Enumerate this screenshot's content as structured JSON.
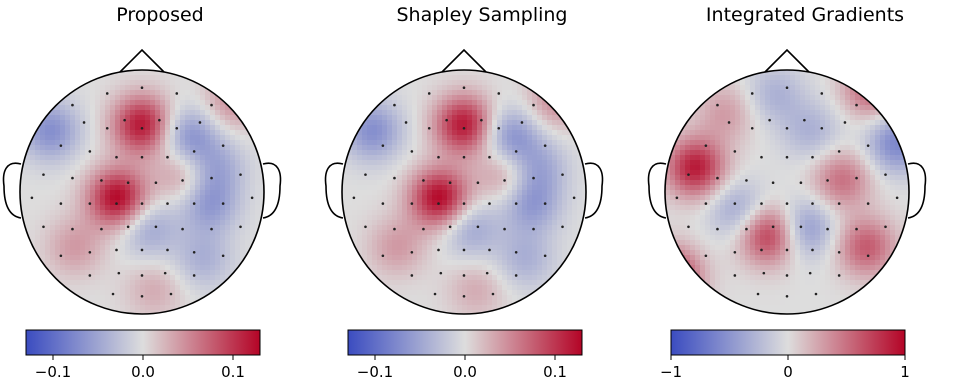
{
  "chart_data": [
    {
      "type": "heatmap",
      "subtype": "eeg-topomap",
      "title": "Proposed",
      "colormap": "coolwarm",
      "colors": {
        "low": "#3b4cc0",
        "mid": "#dddddd",
        "high": "#b40426"
      },
      "vlim": [
        -0.13,
        0.13
      ],
      "colorbar": {
        "ticks": [
          -0.1,
          0.0,
          0.1
        ],
        "tick_labels": [
          "−0.1",
          "0.0",
          "0.1"
        ]
      },
      "sources": [
        {
          "x": 0.0,
          "y": 0.55,
          "value": 0.12
        },
        {
          "x": -0.2,
          "y": -0.05,
          "value": 0.13
        },
        {
          "x": 0.38,
          "y": 0.45,
          "value": -0.07
        },
        {
          "x": 0.75,
          "y": 0.75,
          "value": 0.05
        },
        {
          "x": -0.75,
          "y": 0.5,
          "value": -0.07
        },
        {
          "x": 0.6,
          "y": 0.2,
          "value": -0.05
        },
        {
          "x": 0.55,
          "y": -0.1,
          "value": -0.06
        },
        {
          "x": 0.35,
          "y": 0.15,
          "value": 0.05
        },
        {
          "x": 0.05,
          "y": -0.3,
          "value": -0.05
        },
        {
          "x": -0.55,
          "y": -0.45,
          "value": 0.04
        },
        {
          "x": 0.5,
          "y": -0.55,
          "value": -0.04
        },
        {
          "x": 0.1,
          "y": -0.8,
          "value": 0.03
        }
      ]
    },
    {
      "type": "heatmap",
      "subtype": "eeg-topomap",
      "title": "Shapley Sampling",
      "colormap": "coolwarm",
      "colors": {
        "low": "#3b4cc0",
        "mid": "#dddddd",
        "high": "#b40426"
      },
      "vlim": [
        -0.13,
        0.13
      ],
      "colorbar": {
        "ticks": [
          -0.1,
          0.0,
          0.1
        ],
        "tick_labels": [
          "−0.1",
          "0.0",
          "0.1"
        ]
      },
      "sources": [
        {
          "x": 0.0,
          "y": 0.55,
          "value": 0.12
        },
        {
          "x": -0.2,
          "y": -0.05,
          "value": 0.13
        },
        {
          "x": 0.38,
          "y": 0.45,
          "value": -0.07
        },
        {
          "x": 0.75,
          "y": 0.75,
          "value": 0.05
        },
        {
          "x": -0.75,
          "y": 0.5,
          "value": -0.07
        },
        {
          "x": 0.6,
          "y": 0.2,
          "value": -0.05
        },
        {
          "x": 0.55,
          "y": -0.1,
          "value": -0.06
        },
        {
          "x": 0.35,
          "y": 0.15,
          "value": 0.05
        },
        {
          "x": 0.05,
          "y": -0.3,
          "value": -0.05
        },
        {
          "x": -0.55,
          "y": -0.45,
          "value": 0.04
        },
        {
          "x": 0.5,
          "y": -0.55,
          "value": -0.04
        },
        {
          "x": 0.1,
          "y": -0.8,
          "value": 0.03
        }
      ]
    },
    {
      "type": "heatmap",
      "subtype": "eeg-topomap",
      "title": "Integrated Gradients",
      "colormap": "coolwarm",
      "colors": {
        "low": "#3b4cc0",
        "mid": "#dddddd",
        "high": "#b40426"
      },
      "vlim": [
        -1,
        1
      ],
      "colorbar": {
        "ticks": [
          -1,
          0,
          1
        ],
        "tick_labels": [
          "−1",
          "0",
          "1"
        ]
      },
      "sources": [
        {
          "x": -0.75,
          "y": 0.2,
          "value": 0.9
        },
        {
          "x": -0.15,
          "y": -0.35,
          "value": 0.8
        },
        {
          "x": -0.95,
          "y": -0.7,
          "value": 0.9
        },
        {
          "x": 0.7,
          "y": 0.85,
          "value": 0.6
        },
        {
          "x": 0.45,
          "y": 0.1,
          "value": 0.5
        },
        {
          "x": 0.65,
          "y": -0.45,
          "value": 0.6
        },
        {
          "x": 0.15,
          "y": -0.3,
          "value": -0.5
        },
        {
          "x": -0.1,
          "y": 0.8,
          "value": -0.3
        },
        {
          "x": 0.9,
          "y": 0.4,
          "value": -0.6
        },
        {
          "x": -0.4,
          "y": -0.15,
          "value": -0.4
        },
        {
          "x": 0.2,
          "y": 0.5,
          "value": -0.3
        },
        {
          "x": -0.5,
          "y": 0.65,
          "value": 0.3
        }
      ]
    }
  ],
  "electrodes": [
    [
      -0.15,
      0.62
    ],
    [
      0.15,
      0.62
    ],
    [
      -0.5,
      0.6
    ],
    [
      -0.3,
      0.55
    ],
    [
      0.0,
      0.55
    ],
    [
      0.3,
      0.55
    ],
    [
      0.5,
      0.6
    ],
    [
      -0.7,
      0.4
    ],
    [
      -0.45,
      0.35
    ],
    [
      -0.22,
      0.3
    ],
    [
      0.0,
      0.3
    ],
    [
      0.22,
      0.3
    ],
    [
      0.45,
      0.35
    ],
    [
      0.7,
      0.4
    ],
    [
      -0.85,
      0.15
    ],
    [
      -0.6,
      0.12
    ],
    [
      -0.35,
      0.1
    ],
    [
      -0.12,
      0.08
    ],
    [
      0.12,
      0.08
    ],
    [
      0.35,
      0.1
    ],
    [
      0.6,
      0.12
    ],
    [
      0.85,
      0.15
    ],
    [
      -0.95,
      -0.05
    ],
    [
      -0.7,
      -0.1
    ],
    [
      -0.45,
      -0.1
    ],
    [
      -0.22,
      -0.1
    ],
    [
      0.0,
      -0.1
    ],
    [
      0.22,
      -0.1
    ],
    [
      0.45,
      -0.1
    ],
    [
      0.7,
      -0.1
    ],
    [
      0.95,
      -0.05
    ],
    [
      -0.85,
      -0.3
    ],
    [
      -0.6,
      -0.32
    ],
    [
      -0.35,
      -0.32
    ],
    [
      -0.12,
      -0.3
    ],
    [
      0.12,
      -0.3
    ],
    [
      0.35,
      -0.32
    ],
    [
      0.6,
      -0.32
    ],
    [
      0.85,
      -0.3
    ],
    [
      -0.7,
      -0.55
    ],
    [
      -0.45,
      -0.52
    ],
    [
      -0.22,
      -0.5
    ],
    [
      0.0,
      -0.5
    ],
    [
      0.22,
      -0.5
    ],
    [
      0.45,
      -0.52
    ],
    [
      0.7,
      -0.55
    ],
    [
      -0.45,
      -0.72
    ],
    [
      -0.2,
      -0.7
    ],
    [
      0.0,
      -0.72
    ],
    [
      0.2,
      -0.7
    ],
    [
      0.45,
      -0.72
    ],
    [
      -0.25,
      -0.88
    ],
    [
      0.0,
      -0.9
    ],
    [
      0.25,
      -0.88
    ],
    [
      -0.3,
      0.85
    ],
    [
      0.0,
      0.9
    ],
    [
      0.3,
      0.85
    ],
    [
      -0.6,
      0.75
    ],
    [
      0.6,
      0.75
    ]
  ]
}
